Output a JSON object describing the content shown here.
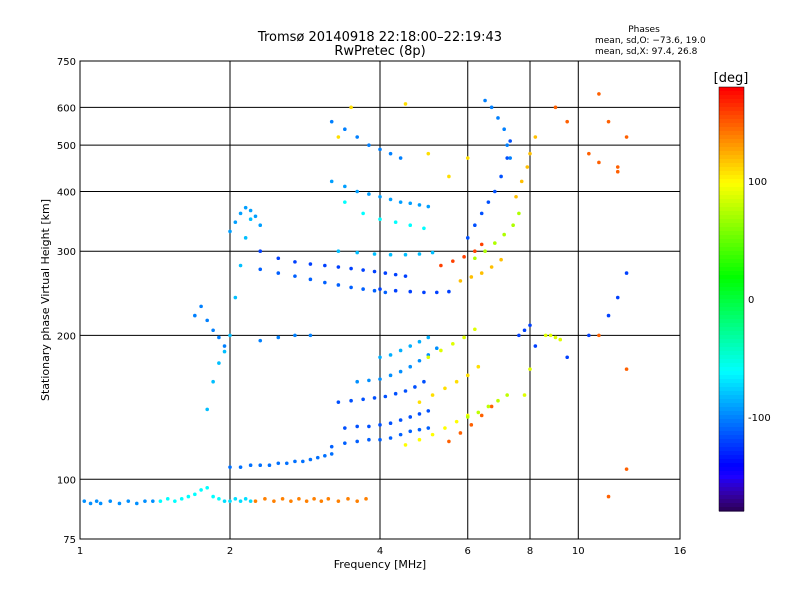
{
  "chart_data": {
    "type": "scatter",
    "title": "Tromsø 20140918 22:18:00–22:19:43",
    "subtitle": "RwPretec (8p)",
    "xlabel": "Frequency [MHz]",
    "ylabel": "Stationary phase Virtual Height [km]",
    "x_scale": "log",
    "y_scale": "log",
    "xlim": [
      1,
      16
    ],
    "ylim": [
      75,
      750
    ],
    "x_ticks": [
      1,
      2,
      4,
      6,
      8,
      10,
      16
    ],
    "x_tick_labels": [
      "1",
      "2",
      "4",
      "6",
      "8",
      "10",
      "16"
    ],
    "y_ticks": [
      75,
      100,
      200,
      300,
      400,
      500,
      600,
      750
    ],
    "y_tick_labels": [
      "75",
      "100",
      "200",
      "300",
      "400",
      "500",
      "600",
      "750"
    ],
    "grid": true,
    "phase_stats": {
      "title": "Phases",
      "line1": "mean, sd,O: −73.6, 19.0",
      "line2": "mean, sd,X:  97.4, 26.8"
    },
    "colorbar": {
      "label": "[deg]",
      "range": [
        -180,
        180
      ],
      "ticks": [
        100,
        0,
        -100
      ],
      "tick_labels": [
        "100",
        "0",
        "-100"
      ]
    },
    "series": [
      {
        "phase": -95,
        "points": [
          [
            1.02,
            90
          ],
          [
            1.05,
            89
          ],
          [
            1.08,
            90
          ],
          [
            1.1,
            89
          ],
          [
            1.15,
            90
          ],
          [
            1.2,
            89
          ],
          [
            1.25,
            90
          ],
          [
            1.3,
            89
          ],
          [
            1.35,
            90
          ],
          [
            1.4,
            90
          ]
        ]
      },
      {
        "phase": -60,
        "points": [
          [
            1.45,
            90
          ],
          [
            1.5,
            91
          ],
          [
            1.55,
            90
          ],
          [
            1.6,
            91
          ],
          [
            1.65,
            92
          ],
          [
            1.7,
            93
          ],
          [
            1.75,
            95
          ],
          [
            1.8,
            96
          ],
          [
            1.85,
            92
          ],
          [
            1.9,
            91
          ]
        ]
      },
      {
        "phase": -70,
        "points": [
          [
            1.95,
            90
          ],
          [
            2.0,
            90
          ],
          [
            2.05,
            91
          ],
          [
            2.1,
            90
          ],
          [
            2.15,
            91
          ],
          [
            2.2,
            90
          ]
        ]
      },
      {
        "phase": 140,
        "points": [
          [
            2.25,
            90
          ],
          [
            2.35,
            91
          ],
          [
            2.45,
            90
          ],
          [
            2.55,
            91
          ],
          [
            2.65,
            90
          ],
          [
            2.75,
            91
          ],
          [
            2.85,
            90
          ],
          [
            2.95,
            91
          ],
          [
            3.05,
            90
          ],
          [
            3.15,
            91
          ],
          [
            3.3,
            90
          ],
          [
            3.45,
            91
          ],
          [
            3.6,
            90
          ],
          [
            3.75,
            91
          ]
        ]
      },
      {
        "phase": -105,
        "points": [
          [
            2.0,
            106
          ],
          [
            2.1,
            106
          ],
          [
            2.2,
            107
          ],
          [
            2.3,
            107
          ],
          [
            2.4,
            107
          ],
          [
            2.5,
            108
          ],
          [
            2.6,
            108
          ],
          [
            2.7,
            109
          ],
          [
            2.8,
            109
          ],
          [
            2.9,
            110
          ],
          [
            3.0,
            111
          ],
          [
            3.1,
            112
          ],
          [
            3.2,
            113
          ]
        ]
      },
      {
        "phase": -110,
        "points": [
          [
            3.2,
            117
          ],
          [
            3.4,
            119
          ],
          [
            3.6,
            120
          ],
          [
            3.8,
            121
          ],
          [
            4.0,
            121
          ],
          [
            4.2,
            122
          ],
          [
            4.4,
            124
          ],
          [
            4.6,
            126
          ],
          [
            4.8,
            127
          ],
          [
            5.0,
            128
          ]
        ]
      },
      {
        "phase": -115,
        "points": [
          [
            3.4,
            128
          ],
          [
            3.6,
            129
          ],
          [
            3.8,
            129
          ],
          [
            4.0,
            130
          ],
          [
            4.2,
            131
          ],
          [
            4.4,
            133
          ],
          [
            4.6,
            135
          ],
          [
            4.8,
            137
          ],
          [
            5.0,
            139
          ]
        ]
      },
      {
        "phase": -115,
        "points": [
          [
            3.3,
            145
          ],
          [
            3.5,
            146
          ],
          [
            3.7,
            147
          ],
          [
            3.9,
            148
          ],
          [
            4.1,
            149
          ],
          [
            4.3,
            151
          ],
          [
            4.5,
            153
          ],
          [
            4.7,
            156
          ],
          [
            4.9,
            160
          ]
        ]
      },
      {
        "phase": -95,
        "points": [
          [
            3.6,
            160
          ],
          [
            3.8,
            161
          ],
          [
            4.0,
            162
          ],
          [
            4.2,
            165
          ],
          [
            4.4,
            168
          ],
          [
            4.6,
            172
          ],
          [
            4.8,
            177
          ],
          [
            5.0,
            182
          ],
          [
            5.2,
            188
          ]
        ]
      },
      {
        "phase": -85,
        "points": [
          [
            4.0,
            180
          ],
          [
            4.2,
            182
          ],
          [
            4.4,
            186
          ],
          [
            4.6,
            190
          ],
          [
            4.8,
            194
          ],
          [
            5.0,
            198
          ]
        ]
      },
      {
        "phase": 100,
        "points": [
          [
            4.5,
            118
          ],
          [
            4.8,
            121
          ],
          [
            5.1,
            124
          ],
          [
            5.4,
            128
          ],
          [
            5.7,
            132
          ],
          [
            6.0,
            136
          ]
        ]
      },
      {
        "phase": 110,
        "points": [
          [
            4.8,
            145
          ],
          [
            5.1,
            150
          ],
          [
            5.4,
            155
          ],
          [
            5.7,
            160
          ],
          [
            6.0,
            165
          ],
          [
            6.3,
            172
          ]
        ]
      },
      {
        "phase": 90,
        "points": [
          [
            5.0,
            180
          ],
          [
            5.3,
            186
          ],
          [
            5.6,
            192
          ],
          [
            5.9,
            198
          ],
          [
            6.2,
            206
          ]
        ]
      },
      {
        "phase": 150,
        "points": [
          [
            5.5,
            120
          ],
          [
            5.8,
            125
          ],
          [
            6.1,
            130
          ],
          [
            6.4,
            136
          ],
          [
            6.7,
            142
          ]
        ]
      },
      {
        "phase": 80,
        "points": [
          [
            6.0,
            135
          ],
          [
            6.3,
            138
          ],
          [
            6.6,
            142
          ],
          [
            6.9,
            146
          ],
          [
            7.2,
            150
          ]
        ]
      },
      {
        "phase": -80,
        "points": [
          [
            1.8,
            140
          ],
          [
            1.85,
            160
          ],
          [
            1.9,
            175
          ],
          [
            1.95,
            185
          ],
          [
            2.0,
            200
          ],
          [
            2.05,
            240
          ],
          [
            2.1,
            280
          ],
          [
            2.15,
            320
          ],
          [
            2.2,
            350
          ]
        ]
      },
      {
        "phase": -100,
        "points": [
          [
            1.7,
            220
          ],
          [
            1.75,
            230
          ],
          [
            1.8,
            215
          ],
          [
            1.85,
            205
          ],
          [
            1.9,
            198
          ],
          [
            1.95,
            190
          ],
          [
            2.3,
            195
          ],
          [
            2.5,
            198
          ],
          [
            2.7,
            200
          ],
          [
            2.9,
            200
          ]
        ]
      },
      {
        "phase": -90,
        "points": [
          [
            2.0,
            330
          ],
          [
            2.05,
            345
          ],
          [
            2.1,
            360
          ],
          [
            2.15,
            370
          ],
          [
            2.2,
            365
          ],
          [
            2.25,
            355
          ],
          [
            2.3,
            340
          ]
        ]
      },
      {
        "phase": -120,
        "points": [
          [
            2.3,
            300
          ],
          [
            2.5,
            290
          ],
          [
            2.7,
            285
          ],
          [
            2.9,
            282
          ],
          [
            3.1,
            280
          ],
          [
            3.3,
            278
          ],
          [
            3.5,
            276
          ],
          [
            3.7,
            274
          ],
          [
            3.9,
            272
          ],
          [
            4.1,
            270
          ],
          [
            4.3,
            268
          ],
          [
            4.5,
            266
          ]
        ]
      },
      {
        "phase": -110,
        "points": [
          [
            2.3,
            275
          ],
          [
            2.5,
            270
          ],
          [
            2.7,
            266
          ],
          [
            2.9,
            262
          ],
          [
            3.1,
            258
          ],
          [
            3.3,
            255
          ],
          [
            3.5,
            252
          ],
          [
            3.7,
            250
          ],
          [
            3.9,
            248
          ],
          [
            4.1,
            246
          ]
        ]
      },
      {
        "phase": -80,
        "points": [
          [
            3.3,
            300
          ],
          [
            3.6,
            298
          ],
          [
            3.9,
            296
          ],
          [
            4.2,
            295
          ],
          [
            4.5,
            295
          ],
          [
            4.8,
            296
          ],
          [
            5.1,
            298
          ]
        ]
      },
      {
        "phase": -120,
        "points": [
          [
            4.0,
            250
          ],
          [
            4.3,
            248
          ],
          [
            4.6,
            247
          ],
          [
            4.9,
            246
          ],
          [
            5.2,
            246
          ],
          [
            5.5,
            247
          ]
        ]
      },
      {
        "phase": 160,
        "points": [
          [
            5.3,
            280
          ],
          [
            5.6,
            286
          ],
          [
            5.9,
            292
          ],
          [
            6.2,
            300
          ],
          [
            6.4,
            310
          ]
        ]
      },
      {
        "phase": 120,
        "points": [
          [
            5.8,
            260
          ],
          [
            6.1,
            265
          ],
          [
            6.4,
            270
          ],
          [
            6.7,
            278
          ],
          [
            7.0,
            288
          ]
        ]
      },
      {
        "phase": 75,
        "points": [
          [
            6.2,
            290
          ],
          [
            6.5,
            300
          ],
          [
            6.8,
            312
          ],
          [
            7.1,
            325
          ],
          [
            7.4,
            340
          ],
          [
            7.6,
            360
          ]
        ]
      },
      {
        "phase": -115,
        "points": [
          [
            6.0,
            320
          ],
          [
            6.2,
            340
          ],
          [
            6.4,
            360
          ],
          [
            6.6,
            380
          ],
          [
            6.8,
            400
          ],
          [
            7.0,
            430
          ],
          [
            7.2,
            470
          ],
          [
            7.3,
            510
          ]
        ]
      },
      {
        "phase": -100,
        "points": [
          [
            6.5,
            620
          ],
          [
            6.7,
            600
          ],
          [
            6.9,
            570
          ],
          [
            7.1,
            540
          ],
          [
            7.2,
            500
          ],
          [
            7.3,
            470
          ]
        ]
      },
      {
        "phase": -100,
        "points": [
          [
            3.2,
            560
          ],
          [
            3.4,
            540
          ],
          [
            3.6,
            520
          ],
          [
            3.8,
            500
          ],
          [
            4.0,
            490
          ],
          [
            4.2,
            480
          ],
          [
            4.4,
            470
          ]
        ]
      },
      {
        "phase": -90,
        "points": [
          [
            3.2,
            420
          ],
          [
            3.4,
            410
          ],
          [
            3.6,
            400
          ],
          [
            3.8,
            395
          ],
          [
            4.0,
            390
          ],
          [
            4.2,
            385
          ],
          [
            4.4,
            380
          ],
          [
            4.6,
            378
          ],
          [
            4.8,
            375
          ],
          [
            5.0,
            372
          ]
        ]
      },
      {
        "phase": -60,
        "points": [
          [
            3.4,
            380
          ],
          [
            3.7,
            360
          ],
          [
            4.0,
            350
          ],
          [
            4.3,
            345
          ],
          [
            4.6,
            340
          ],
          [
            4.9,
            335
          ]
        ]
      },
      {
        "phase": 110,
        "points": [
          [
            3.3,
            520
          ],
          [
            3.5,
            600
          ],
          [
            4.5,
            610
          ],
          [
            5.0,
            480
          ],
          [
            5.5,
            430
          ],
          [
            6.0,
            470
          ]
        ]
      },
      {
        "phase": 120,
        "points": [
          [
            7.5,
            390
          ],
          [
            7.7,
            420
          ],
          [
            7.9,
            450
          ],
          [
            8.0,
            480
          ],
          [
            8.2,
            520
          ]
        ]
      },
      {
        "phase": 90,
        "points": [
          [
            8.6,
            200
          ],
          [
            8.8,
            200
          ],
          [
            9.0,
            198
          ],
          [
            9.2,
            196
          ],
          [
            7.8,
            150
          ],
          [
            8.0,
            170
          ]
        ]
      },
      {
        "phase": -120,
        "points": [
          [
            7.6,
            200
          ],
          [
            7.8,
            205
          ],
          [
            8.0,
            210
          ],
          [
            8.2,
            190
          ],
          [
            9.5,
            180
          ],
          [
            10.5,
            200
          ],
          [
            11.5,
            220
          ],
          [
            12.0,
            240
          ],
          [
            12.5,
            270
          ]
        ]
      },
      {
        "phase": 150,
        "points": [
          [
            9.0,
            600
          ],
          [
            9.5,
            560
          ],
          [
            10.5,
            480
          ],
          [
            11.0,
            460
          ],
          [
            12.0,
            450
          ],
          [
            12.5,
            520
          ],
          [
            11.0,
            640
          ],
          [
            11.5,
            560
          ],
          [
            12.0,
            440
          ],
          [
            12.5,
            170
          ],
          [
            11.0,
            200
          ],
          [
            12.5,
            105
          ],
          [
            11.5,
            92
          ]
        ]
      }
    ]
  }
}
